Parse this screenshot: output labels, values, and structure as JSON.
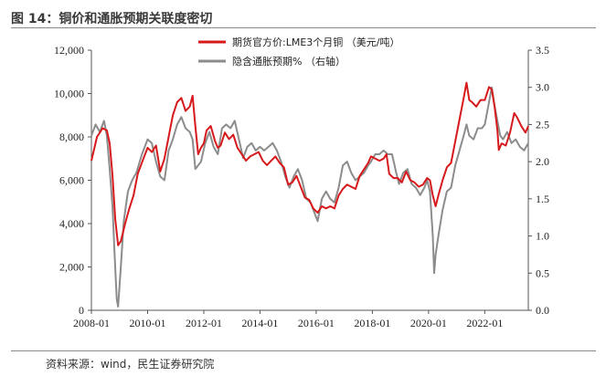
{
  "header": {
    "title": "图 14：铜价和通胀预期关联度密切"
  },
  "footer": {
    "source": "资料来源：wind，民生证券研究院"
  },
  "chart_data": {
    "type": "line",
    "title": "图 14：铜价和通胀预期关联度密切",
    "xlabel": "",
    "ylabel": "",
    "x_range": [
      2008.0,
      2023.55
    ],
    "x_ticks": [
      {
        "label": "2008-01",
        "value": 2008.0
      },
      {
        "label": "2010-01",
        "value": 2010.0
      },
      {
        "label": "2012-01",
        "value": 2012.0
      },
      {
        "label": "2014-01",
        "value": 2014.0
      },
      {
        "label": "2016-01",
        "value": 2016.0
      },
      {
        "label": "2018-01",
        "value": 2018.0
      },
      {
        "label": "2020-01",
        "value": 2020.0
      },
      {
        "label": "2022-01",
        "value": 2022.0
      }
    ],
    "y_left": {
      "range": [
        0,
        12000
      ],
      "ticks": [
        "0",
        "2,000",
        "4,000",
        "6,000",
        "8,000",
        "10,000",
        "12,000"
      ],
      "tick_values": [
        0,
        2000,
        4000,
        6000,
        8000,
        10000,
        12000
      ]
    },
    "y_right": {
      "range": [
        0,
        3.5
      ],
      "ticks": [
        "0.0",
        "0.5",
        "1.0",
        "1.5",
        "2.0",
        "2.5",
        "3.0",
        "3.5"
      ],
      "tick_values": [
        0,
        0.5,
        1,
        1.5,
        2,
        2.5,
        3,
        3.5
      ]
    },
    "legend_position": "top-center",
    "series": [
      {
        "name": "期货官方价:LME3个月铜 （美元/吨）",
        "axis": "left",
        "color": "#d7191c",
        "points": [
          [
            2008.0,
            6900
          ],
          [
            2008.2,
            8000
          ],
          [
            2008.4,
            8400
          ],
          [
            2008.55,
            8300
          ],
          [
            2008.65,
            7700
          ],
          [
            2008.75,
            6200
          ],
          [
            2008.85,
            4200
          ],
          [
            2008.95,
            3000
          ],
          [
            2009.05,
            3200
          ],
          [
            2009.2,
            4000
          ],
          [
            2009.35,
            4700
          ],
          [
            2009.5,
            5300
          ],
          [
            2009.65,
            6300
          ],
          [
            2009.85,
            7000
          ],
          [
            2010.0,
            7500
          ],
          [
            2010.15,
            7300
          ],
          [
            2010.3,
            7600
          ],
          [
            2010.45,
            6400
          ],
          [
            2010.6,
            7000
          ],
          [
            2010.75,
            8000
          ],
          [
            2010.9,
            9000
          ],
          [
            2011.05,
            9600
          ],
          [
            2011.2,
            9800
          ],
          [
            2011.35,
            9200
          ],
          [
            2011.5,
            9400
          ],
          [
            2011.6,
            9900
          ],
          [
            2011.7,
            8500
          ],
          [
            2011.8,
            7200
          ],
          [
            2011.9,
            7500
          ],
          [
            2012.0,
            7700
          ],
          [
            2012.1,
            8300
          ],
          [
            2012.25,
            8500
          ],
          [
            2012.4,
            7800
          ],
          [
            2012.5,
            7500
          ],
          [
            2012.6,
            7600
          ],
          [
            2012.75,
            8200
          ],
          [
            2012.9,
            7900
          ],
          [
            2013.05,
            8100
          ],
          [
            2013.2,
            7500
          ],
          [
            2013.35,
            7200
          ],
          [
            2013.5,
            6900
          ],
          [
            2013.65,
            7100
          ],
          [
            2013.8,
            7200
          ],
          [
            2013.95,
            7300
          ],
          [
            2014.1,
            6900
          ],
          [
            2014.25,
            6700
          ],
          [
            2014.4,
            6900
          ],
          [
            2014.55,
            7100
          ],
          [
            2014.7,
            6800
          ],
          [
            2014.85,
            6600
          ],
          [
            2015.0,
            5800
          ],
          [
            2015.15,
            5900
          ],
          [
            2015.3,
            6200
          ],
          [
            2015.45,
            5700
          ],
          [
            2015.6,
            5200
          ],
          [
            2015.75,
            5100
          ],
          [
            2015.9,
            4700
          ],
          [
            2016.05,
            4500
          ],
          [
            2016.2,
            4800
          ],
          [
            2016.35,
            4700
          ],
          [
            2016.5,
            4800
          ],
          [
            2016.65,
            4700
          ],
          [
            2016.8,
            5300
          ],
          [
            2016.95,
            5600
          ],
          [
            2017.1,
            5800
          ],
          [
            2017.25,
            5700
          ],
          [
            2017.4,
            5600
          ],
          [
            2017.55,
            6200
          ],
          [
            2017.7,
            6500
          ],
          [
            2017.85,
            6800
          ],
          [
            2017.95,
            7100
          ],
          [
            2018.1,
            7000
          ],
          [
            2018.25,
            6900
          ],
          [
            2018.4,
            7000
          ],
          [
            2018.5,
            7200
          ],
          [
            2018.6,
            6300
          ],
          [
            2018.75,
            6100
          ],
          [
            2018.9,
            6100
          ],
          [
            2019.05,
            5900
          ],
          [
            2019.2,
            6400
          ],
          [
            2019.35,
            6000
          ],
          [
            2019.5,
            5900
          ],
          [
            2019.65,
            5700
          ],
          [
            2019.8,
            5800
          ],
          [
            2019.95,
            6100
          ],
          [
            2020.05,
            6000
          ],
          [
            2020.15,
            5300
          ],
          [
            2020.25,
            4800
          ],
          [
            2020.35,
            5300
          ],
          [
            2020.5,
            6000
          ],
          [
            2020.65,
            6600
          ],
          [
            2020.8,
            6800
          ],
          [
            2020.95,
            7800
          ],
          [
            2021.1,
            8800
          ],
          [
            2021.25,
            9800
          ],
          [
            2021.35,
            10500
          ],
          [
            2021.45,
            9700
          ],
          [
            2021.55,
            9600
          ],
          [
            2021.7,
            9400
          ],
          [
            2021.85,
            9700
          ],
          [
            2022.0,
            9700
          ],
          [
            2022.15,
            10300
          ],
          [
            2022.25,
            10200
          ],
          [
            2022.35,
            9400
          ],
          [
            2022.45,
            8300
          ],
          [
            2022.5,
            7400
          ],
          [
            2022.6,
            7700
          ],
          [
            2022.75,
            7600
          ],
          [
            2022.9,
            8200
          ],
          [
            2023.05,
            9100
          ],
          [
            2023.15,
            8900
          ],
          [
            2023.3,
            8500
          ],
          [
            2023.45,
            8200
          ],
          [
            2023.55,
            8500
          ]
        ]
      },
      {
        "name": "隐含通胀预期% （右轴）",
        "axis": "right",
        "color": "#8c8c8c",
        "points": [
          [
            2008.0,
            2.35
          ],
          [
            2008.15,
            2.5
          ],
          [
            2008.3,
            2.4
          ],
          [
            2008.45,
            2.55
          ],
          [
            2008.55,
            2.35
          ],
          [
            2008.65,
            1.9
          ],
          [
            2008.75,
            1.4
          ],
          [
            2008.82,
            0.8
          ],
          [
            2008.9,
            0.15
          ],
          [
            2008.95,
            0.05
          ],
          [
            2009.05,
            0.6
          ],
          [
            2009.15,
            1.2
          ],
          [
            2009.3,
            1.6
          ],
          [
            2009.45,
            1.75
          ],
          [
            2009.6,
            1.85
          ],
          [
            2009.8,
            2.1
          ],
          [
            2010.0,
            2.3
          ],
          [
            2010.15,
            2.25
          ],
          [
            2010.3,
            2.0
          ],
          [
            2010.45,
            1.8
          ],
          [
            2010.6,
            1.75
          ],
          [
            2010.75,
            2.15
          ],
          [
            2010.9,
            2.3
          ],
          [
            2011.05,
            2.5
          ],
          [
            2011.2,
            2.6
          ],
          [
            2011.35,
            2.45
          ],
          [
            2011.5,
            2.4
          ],
          [
            2011.6,
            2.3
          ],
          [
            2011.7,
            1.9
          ],
          [
            2011.8,
            1.95
          ],
          [
            2011.9,
            2.0
          ],
          [
            2012.05,
            2.25
          ],
          [
            2012.2,
            2.4
          ],
          [
            2012.35,
            2.2
          ],
          [
            2012.5,
            2.1
          ],
          [
            2012.65,
            2.45
          ],
          [
            2012.8,
            2.5
          ],
          [
            2012.95,
            2.45
          ],
          [
            2013.1,
            2.55
          ],
          [
            2013.25,
            2.3
          ],
          [
            2013.4,
            2.05
          ],
          [
            2013.55,
            2.2
          ],
          [
            2013.7,
            2.25
          ],
          [
            2013.85,
            2.15
          ],
          [
            2014.0,
            2.2
          ],
          [
            2014.15,
            2.15
          ],
          [
            2014.3,
            2.2
          ],
          [
            2014.45,
            2.25
          ],
          [
            2014.6,
            2.15
          ],
          [
            2014.75,
            2.0
          ],
          [
            2014.9,
            1.8
          ],
          [
            2015.05,
            1.65
          ],
          [
            2015.2,
            1.8
          ],
          [
            2015.35,
            1.9
          ],
          [
            2015.5,
            1.75
          ],
          [
            2015.65,
            1.5
          ],
          [
            2015.8,
            1.45
          ],
          [
            2015.95,
            1.3
          ],
          [
            2016.05,
            1.2
          ],
          [
            2016.2,
            1.5
          ],
          [
            2016.35,
            1.6
          ],
          [
            2016.5,
            1.5
          ],
          [
            2016.65,
            1.45
          ],
          [
            2016.8,
            1.65
          ],
          [
            2016.95,
            1.95
          ],
          [
            2017.1,
            2.0
          ],
          [
            2017.25,
            1.85
          ],
          [
            2017.4,
            1.75
          ],
          [
            2017.55,
            1.8
          ],
          [
            2017.7,
            1.85
          ],
          [
            2017.85,
            1.95
          ],
          [
            2017.95,
            2.0
          ],
          [
            2018.1,
            2.1
          ],
          [
            2018.25,
            2.1
          ],
          [
            2018.4,
            2.15
          ],
          [
            2018.55,
            2.1
          ],
          [
            2018.7,
            2.1
          ],
          [
            2018.85,
            1.85
          ],
          [
            2018.95,
            1.7
          ],
          [
            2019.1,
            1.85
          ],
          [
            2019.25,
            1.9
          ],
          [
            2019.4,
            1.7
          ],
          [
            2019.55,
            1.65
          ],
          [
            2019.7,
            1.55
          ],
          [
            2019.85,
            1.65
          ],
          [
            2019.95,
            1.75
          ],
          [
            2020.05,
            1.6
          ],
          [
            2020.15,
            1.0
          ],
          [
            2020.2,
            0.5
          ],
          [
            2020.25,
            0.75
          ],
          [
            2020.35,
            1.0
          ],
          [
            2020.5,
            1.35
          ],
          [
            2020.65,
            1.6
          ],
          [
            2020.8,
            1.65
          ],
          [
            2020.95,
            1.95
          ],
          [
            2021.1,
            2.15
          ],
          [
            2021.25,
            2.35
          ],
          [
            2021.35,
            2.5
          ],
          [
            2021.45,
            2.35
          ],
          [
            2021.6,
            2.3
          ],
          [
            2021.75,
            2.45
          ],
          [
            2021.9,
            2.45
          ],
          [
            2022.0,
            2.5
          ],
          [
            2022.15,
            2.8
          ],
          [
            2022.25,
            3.0
          ],
          [
            2022.35,
            2.75
          ],
          [
            2022.45,
            2.55
          ],
          [
            2022.55,
            2.35
          ],
          [
            2022.65,
            2.3
          ],
          [
            2022.8,
            2.4
          ],
          [
            2022.95,
            2.25
          ],
          [
            2023.1,
            2.3
          ],
          [
            2023.25,
            2.2
          ],
          [
            2023.4,
            2.15
          ],
          [
            2023.55,
            2.25
          ]
        ]
      }
    ]
  }
}
